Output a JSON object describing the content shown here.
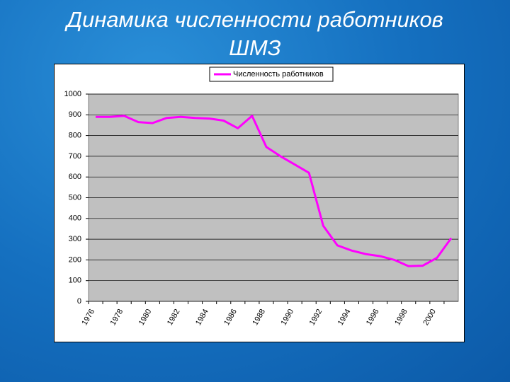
{
  "chart_data": {
    "type": "line",
    "title": "Динамика численности работников ШМЗ",
    "categories": [
      "1976",
      null,
      "1978",
      null,
      "1980",
      null,
      "1982",
      null,
      "1984",
      null,
      "1986",
      null,
      "1988",
      null,
      "1990",
      null,
      "1992",
      null,
      "1994",
      null,
      "1996",
      null,
      "1998",
      null,
      "2000",
      null
    ],
    "series": [
      {
        "name": "Численность работников",
        "color": "#ff00ff",
        "values": [
          890,
          890,
          895,
          865,
          860,
          885,
          890,
          885,
          882,
          872,
          835,
          895,
          745,
          700,
          660,
          620,
          365,
          270,
          245,
          228,
          218,
          200,
          170,
          172,
          210,
          305
        ]
      }
    ],
    "ylim": [
      0,
      1000
    ],
    "yticks": [
      0,
      100,
      200,
      300,
      400,
      500,
      600,
      700,
      800,
      900,
      1000
    ],
    "grid": true,
    "legend": "top"
  }
}
